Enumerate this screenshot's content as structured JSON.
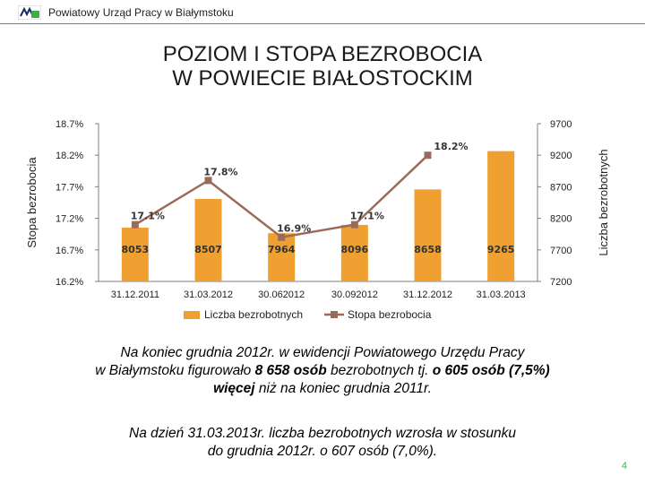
{
  "header": {
    "org_name": "Powiatowy Urząd Pracy w Białymstoku",
    "logo_icon": "pup-logo-icon"
  },
  "title": {
    "line1": "POZIOM I STOPA BEZROBOCIA",
    "line2": "W POWIECIE BIAŁOSTOCKIM"
  },
  "chart_data": {
    "type": "bar",
    "categories": [
      "31.12.2011",
      "31.03.2012",
      "30.062012",
      "30.092012",
      "31.12.2012",
      "31.03.2013"
    ],
    "series": [
      {
        "name": "Liczba bezrobotnych",
        "type": "bar",
        "axis": "right",
        "values": [
          8053,
          8507,
          7964,
          8096,
          8658,
          9265
        ],
        "labels": [
          "8053",
          "8507",
          "7964",
          "8096",
          "8658",
          "9265"
        ],
        "color": "#f0a030"
      },
      {
        "name": "Stopa bezrobocia",
        "type": "line",
        "axis": "left",
        "values": [
          17.1,
          17.8,
          16.9,
          17.1,
          18.2,
          null
        ],
        "labels": [
          "17.1%",
          "17.8%",
          "16.9%",
          "17.1%",
          "18.2%",
          ""
        ],
        "color": "#9b6b5a"
      }
    ],
    "ylabel_left": "Stopa bezrobocia",
    "ylabel_right": "Liczba bezrobotnych",
    "y_left": {
      "min": 16.2,
      "max": 18.7,
      "ticks": [
        "16.2%",
        "16.7%",
        "17.2%",
        "17.7%",
        "18.2%",
        "18.7%"
      ]
    },
    "y_right": {
      "min": 7200,
      "max": 9700,
      "ticks": [
        "7200",
        "7700",
        "8200",
        "8700",
        "9200",
        "9700"
      ]
    },
    "legend_position": "bottom",
    "grid": false
  },
  "text": {
    "p1_part1": "Na koniec grudnia 2012r. w ewidencji  Powiatowego Urzędu Pracy",
    "p1_part2": "w Białymstoku figurowało ",
    "p1_bold1": "8 658 osób",
    "p1_part3": " bezrobotnych tj. ",
    "p1_bold2": "o 605 osób (7,5%)",
    "p1_bold3": "więcej",
    "p1_part4": " niż na koniec grudnia 2011r.",
    "p2_line1": "Na dzień 31.03.2013r.  liczba bezrobotnych  wzrosła w stosunku",
    "p2_line2": "do grudnia 2012r. o 607 osób (7,0%)."
  },
  "page_number": "4"
}
